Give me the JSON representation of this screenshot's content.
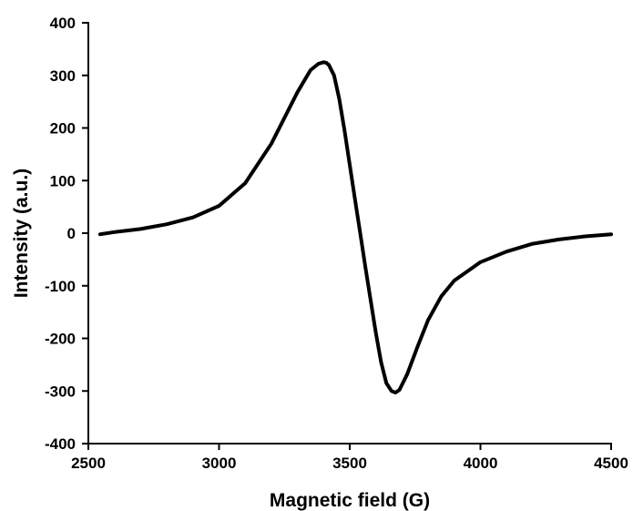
{
  "chart_data": {
    "type": "line",
    "xlabel": "Magnetic field (G)",
    "ylabel": "Intensity (a.u.)",
    "xlim": [
      2500,
      4500
    ],
    "ylim": [
      -400,
      400
    ],
    "xticks": [
      2500,
      3000,
      3500,
      4000,
      4500
    ],
    "yticks": [
      400,
      300,
      200,
      100,
      0,
      -100,
      -200,
      -300,
      -400
    ],
    "grid": false,
    "series": [
      {
        "color": "#000000",
        "x": [
          2545,
          2600,
          2700,
          2800,
          2900,
          3000,
          3100,
          3200,
          3300,
          3350,
          3380,
          3400,
          3410,
          3420,
          3440,
          3460,
          3480,
          3500,
          3520,
          3540,
          3560,
          3580,
          3600,
          3620,
          3640,
          3660,
          3675,
          3690,
          3720,
          3760,
          3800,
          3850,
          3900,
          4000,
          4100,
          4200,
          4300,
          4400,
          4500
        ],
        "y": [
          -2,
          2,
          8,
          17,
          30,
          52,
          95,
          170,
          268,
          310,
          322,
          325,
          324,
          320,
          300,
          255,
          195,
          130,
          65,
          0,
          -65,
          -128,
          -190,
          -245,
          -285,
          -300,
          -303,
          -298,
          -268,
          -215,
          -165,
          -120,
          -90,
          -55,
          -35,
          -20,
          -12,
          -6,
          -2
        ]
      }
    ]
  }
}
